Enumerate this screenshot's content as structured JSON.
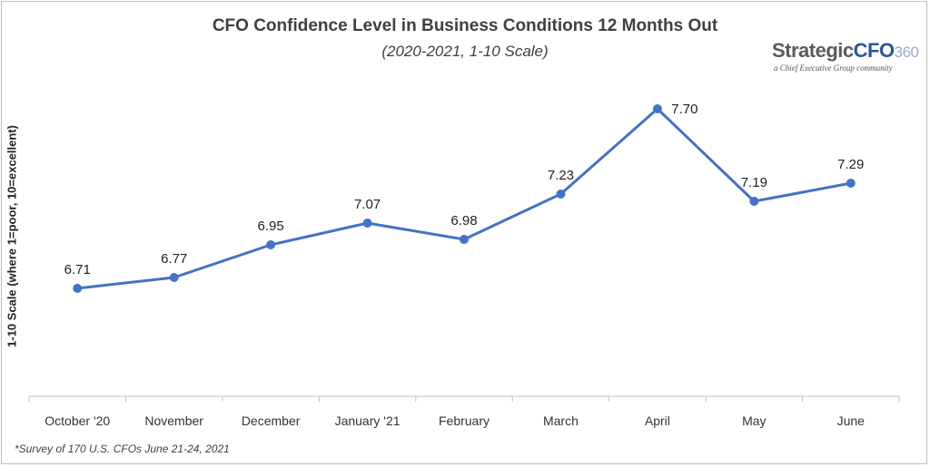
{
  "chart_data": {
    "type": "line",
    "title": "CFO Confidence Level in Business Conditions 12 Months Out",
    "subtitle": "(2020-2021, 1-10 Scale)",
    "ylabel": "1-10 Scale (where 1=poor, 10=excellent)",
    "xlabel": "",
    "categories": [
      "October '20",
      "November",
      "December",
      "January '21",
      "February",
      "March",
      "April",
      "May",
      "June"
    ],
    "series": [
      {
        "values": [
          6.71,
          6.77,
          6.95,
          7.07,
          6.98,
          7.23,
          7.7,
          7.19,
          7.29
        ],
        "color": "#4472c4"
      }
    ],
    "data_labels": [
      "6.71",
      "6.77",
      "6.95",
      "7.07",
      "6.98",
      "7.23",
      "7.70",
      "7.19",
      "7.29"
    ],
    "ylim": [
      6.2,
      7.8
    ],
    "grid": false,
    "legend": "none"
  },
  "logo": {
    "brand_main": "Strategic",
    "brand_accent": "CFO",
    "brand_num": "360",
    "tagline": "a Chief Executive Group community"
  },
  "footnote": "*Survey of 170 U.S. CFOs June 21-24, 2021",
  "colors": {
    "line": "#4472c4",
    "axis": "#bfbfbf",
    "text": "#404040"
  }
}
